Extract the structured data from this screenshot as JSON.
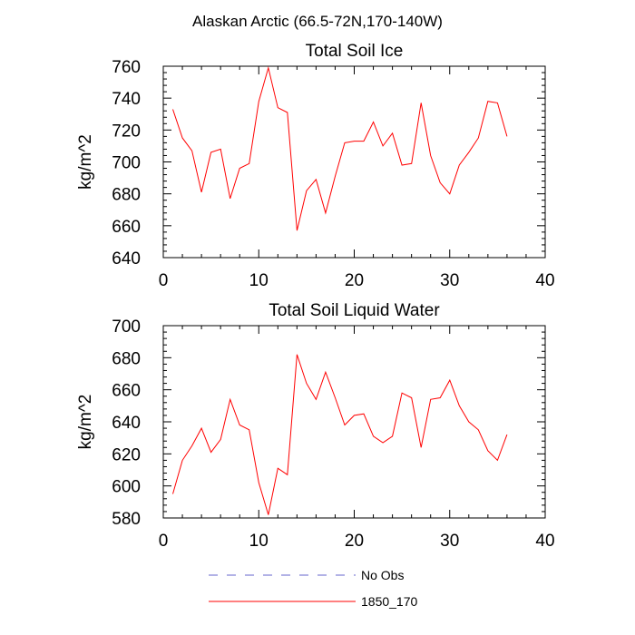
{
  "figure": {
    "title": "Alaskan Arctic (66.5-72N,170-140W)"
  },
  "legend": {
    "items": [
      {
        "label": "No Obs",
        "color": "#6666cc",
        "style": "dashed"
      },
      {
        "label": "1850_170",
        "color": "#ff0000",
        "style": "solid"
      }
    ]
  },
  "chart_data": [
    {
      "type": "line",
      "title": "Total Soil Ice",
      "xlabel": "",
      "ylabel": "kg/m^2",
      "xlim": [
        0,
        40
      ],
      "ylim": [
        640,
        760
      ],
      "xticks": [
        0,
        10,
        20,
        30,
        40
      ],
      "yticks": [
        640,
        660,
        680,
        700,
        720,
        740,
        760
      ],
      "grid": false,
      "x": [
        1,
        2,
        3,
        4,
        5,
        6,
        7,
        8,
        9,
        10,
        11,
        12,
        13,
        14,
        15,
        16,
        17,
        18,
        19,
        20,
        21,
        22,
        23,
        24,
        25,
        26,
        27,
        28,
        29,
        30,
        31,
        32,
        33,
        34,
        35,
        36
      ],
      "series": [
        {
          "name": "1850_170",
          "color": "#ff0000",
          "values": [
            733,
            715,
            707,
            681,
            706,
            708,
            677,
            696,
            699,
            738,
            759,
            734,
            731,
            657,
            682,
            689,
            668,
            691,
            712,
            713,
            713,
            725,
            710,
            718,
            698,
            699,
            737,
            704,
            687,
            680,
            698,
            706,
            715,
            738,
            737,
            716
          ]
        }
      ]
    },
    {
      "type": "line",
      "title": "Total Soil Liquid Water",
      "xlabel": "",
      "ylabel": "kg/m^2",
      "xlim": [
        0,
        40
      ],
      "ylim": [
        580,
        700
      ],
      "xticks": [
        0,
        10,
        20,
        30,
        40
      ],
      "yticks": [
        580,
        600,
        620,
        640,
        660,
        680,
        700
      ],
      "grid": false,
      "x": [
        1,
        2,
        3,
        4,
        5,
        6,
        7,
        8,
        9,
        10,
        11,
        12,
        13,
        14,
        15,
        16,
        17,
        18,
        19,
        20,
        21,
        22,
        23,
        24,
        25,
        26,
        27,
        28,
        29,
        30,
        31,
        32,
        33,
        34,
        35,
        36
      ],
      "series": [
        {
          "name": "1850_170",
          "color": "#ff0000",
          "values": [
            595,
            616,
            625,
            636,
            621,
            629,
            654,
            638,
            635,
            602,
            582,
            611,
            607,
            682,
            664,
            654,
            671,
            655,
            638,
            644,
            645,
            631,
            627,
            631,
            658,
            655,
            624,
            654,
            655,
            666,
            650,
            640,
            635,
            622,
            616,
            632
          ]
        }
      ]
    }
  ]
}
